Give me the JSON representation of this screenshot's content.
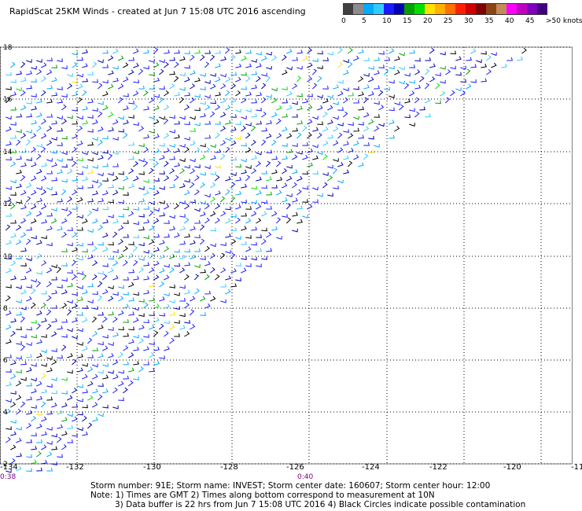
{
  "title": "RapidScat 25KM Winds - created at Jun  7 15:08 UTC 2016 ascending",
  "color_scale": [
    {
      "label": "0",
      "color": "#404040"
    },
    {
      "label": "",
      "color": "#8c8c8c"
    },
    {
      "label": "5",
      "color": "#00aaff"
    },
    {
      "label": "",
      "color": "#33ccff"
    },
    {
      "label": "10",
      "color": "#1a1aff"
    },
    {
      "label": "",
      "color": "#0000b0"
    },
    {
      "label": "15",
      "color": "#00a000"
    },
    {
      "label": "",
      "color": "#00e000"
    },
    {
      "label": "20",
      "color": "#ffe000"
    },
    {
      "label": "",
      "color": "#ffb000"
    },
    {
      "label": "25",
      "color": "#ff7000"
    },
    {
      "label": "",
      "color": "#ff2000"
    },
    {
      "label": "30",
      "color": "#d00000"
    },
    {
      "label": "",
      "color": "#800000"
    },
    {
      "label": "35",
      "color": "#8b4513"
    },
    {
      "label": "",
      "color": "#c48a5a"
    },
    {
      "label": "40",
      "color": "#ff00ff"
    },
    {
      "label": "",
      "color": "#c000c0"
    },
    {
      "label": "45",
      "color": "#8000c0"
    },
    {
      "label": "",
      "color": "#400080"
    },
    {
      "label": ">50 knots",
      "color": ""
    }
  ],
  "latitudes": [
    "18",
    "16",
    "14",
    "12",
    "10",
    "8",
    "6",
    "4",
    "2"
  ],
  "longitudes": [
    "-134",
    "-132",
    "-130",
    "-128",
    "-126",
    "-124",
    "-122",
    "-120",
    "-11"
  ],
  "time_labels": {
    "left": "0:38",
    "mid": "0:40"
  },
  "footer": {
    "storm_line": "Storm number: 91E;  Storm name: INVEST;  Storm center date: 160607;  Storm center hour: 12:00",
    "note_line1": "Note: 1) Times are GMT  2) Times along bottom correspond to measurement at 10N",
    "note_line2": "3) Data buffer is 22 hrs from Jun  7 15:08 UTC 2016  4) Black Circles indicate possible contamination"
  },
  "wind_colors": [
    "#1a1aff",
    "#0000b0",
    "#00aaff",
    "#33ccff",
    "#000000",
    "#00a000",
    "#00e000",
    "#ffe000",
    "#ffb000"
  ]
}
